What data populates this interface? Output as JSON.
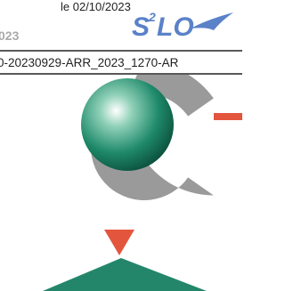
{
  "header": {
    "date": "le 02/10/2023",
    "year_fragment": "023",
    "logo": {
      "letter": "S",
      "superscript": "2",
      "rest": "LO"
    },
    "reference": "0-20230929-ARR_2023_1270-AR"
  }
}
